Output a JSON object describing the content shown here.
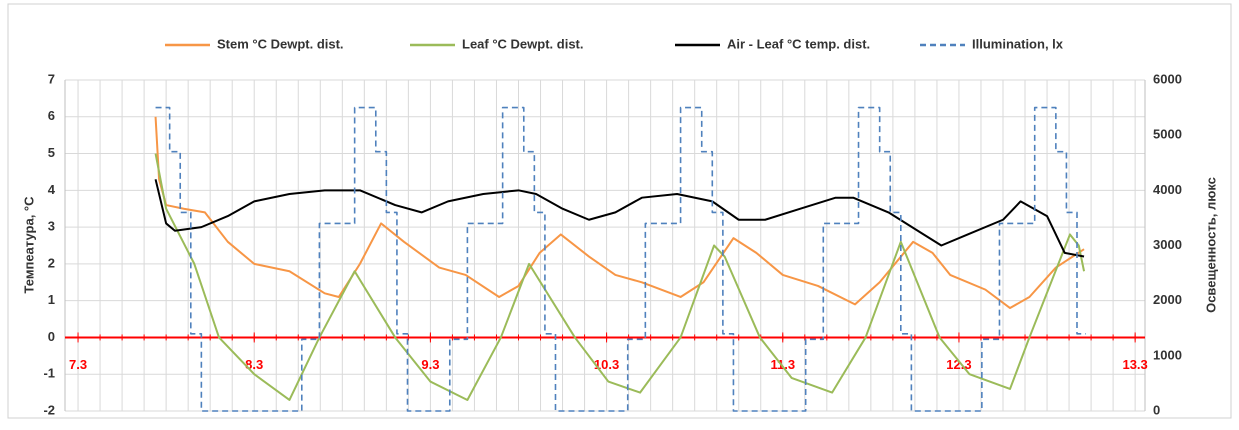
{
  "chart_data": {
    "type": "line",
    "ylabel": "Темпеатура, °C",
    "y2label": "Освещенность, люкс",
    "xlim": [
      -0.074,
      6.056
    ],
    "xticks": [
      {
        "value": 0,
        "label": "7.3"
      },
      {
        "value": 1,
        "label": "8.3"
      },
      {
        "value": 2,
        "label": "9.3"
      },
      {
        "value": 3,
        "label": "10.3"
      },
      {
        "value": 4,
        "label": "11.3"
      },
      {
        "value": 5,
        "label": "12.3"
      },
      {
        "value": 6,
        "label": "13.3"
      }
    ],
    "xminor_ticks": [
      0,
      0.125,
      0.25,
      0.375,
      0.5,
      0.625,
      0.75,
      0.875,
      1,
      1.125,
      1.25,
      1.375,
      1.5,
      1.625,
      1.75,
      1.875,
      2,
      2.125,
      2.25,
      2.375,
      2.5,
      2.625,
      2.75,
      2.875,
      3,
      3.125,
      3.25,
      3.375,
      3.5,
      3.625,
      3.75,
      3.875,
      4,
      4.125,
      4.25,
      4.375,
      4.5,
      4.625,
      4.75,
      4.875,
      5,
      5.125,
      5.25,
      5.375,
      5.5,
      5.625,
      5.75,
      5.875,
      6
    ],
    "ylim": [
      -2,
      7
    ],
    "yticks": [
      -2,
      -1,
      0,
      1,
      2,
      3,
      4,
      5,
      6,
      7
    ],
    "y2lim": [
      0,
      6000
    ],
    "y2ticks": [
      0,
      1000,
      2000,
      3000,
      4000,
      5000,
      6000
    ],
    "grid": true,
    "legend": "top",
    "xaxis_color": "#ff0000",
    "series": [
      {
        "name": "Stem °C Dewpt. dist.",
        "color": "#f79646",
        "linestyle": "solid",
        "x": [
          0.44,
          0.46,
          0.5,
          0.6,
          0.72,
          0.85,
          1.0,
          1.2,
          1.4,
          1.48,
          1.6,
          1.72,
          1.85,
          2.05,
          2.2,
          2.39,
          2.5,
          2.62,
          2.74,
          2.9,
          3.05,
          3.2,
          3.42,
          3.55,
          3.72,
          3.85,
          4.0,
          4.2,
          4.41,
          4.55,
          4.74,
          4.85,
          4.95,
          5.15,
          5.29,
          5.4,
          5.55,
          5.71
        ],
        "values": [
          6.0,
          4.3,
          3.6,
          3.5,
          3.4,
          2.6,
          2.0,
          1.8,
          1.2,
          1.1,
          2.0,
          3.1,
          2.6,
          1.9,
          1.7,
          1.1,
          1.4,
          2.3,
          2.8,
          2.2,
          1.7,
          1.5,
          1.1,
          1.5,
          2.7,
          2.3,
          1.7,
          1.4,
          0.9,
          1.5,
          2.6,
          2.3,
          1.7,
          1.3,
          0.8,
          1.1,
          1.9,
          2.4
        ]
      },
      {
        "name": "Leaf °C Dewpt. dist.",
        "color": "#9bbb59",
        "linestyle": "solid",
        "x": [
          0.44,
          0.5,
          0.66,
          0.8,
          1.0,
          1.2,
          1.37,
          1.57,
          1.8,
          2.0,
          2.21,
          2.4,
          2.56,
          2.82,
          3.01,
          3.19,
          3.42,
          3.61,
          3.67,
          3.87,
          4.05,
          4.28,
          4.47,
          4.67,
          4.89,
          5.06,
          5.29,
          5.4,
          5.63,
          5.68,
          5.71
        ],
        "values": [
          5.0,
          3.5,
          2.0,
          0,
          -1.0,
          -1.7,
          0,
          1.8,
          0,
          -1.2,
          -1.7,
          0,
          2.0,
          0,
          -1.2,
          -1.5,
          0,
          2.5,
          2.2,
          0,
          -1.1,
          -1.5,
          0,
          2.6,
          0,
          -1.0,
          -1.4,
          0,
          2.8,
          2.5,
          1.8
        ]
      },
      {
        "name": "Air - Leaf °C temp. dist.",
        "color": "#000000",
        "linestyle": "solid",
        "x": [
          0.44,
          0.5,
          0.55,
          0.7,
          0.85,
          1.0,
          1.2,
          1.4,
          1.6,
          1.8,
          1.95,
          2.1,
          2.3,
          2.5,
          2.6,
          2.75,
          2.9,
          3.05,
          3.2,
          3.4,
          3.6,
          3.75,
          3.9,
          4.1,
          4.3,
          4.4,
          4.6,
          4.8,
          4.9,
          5.05,
          5.25,
          5.35,
          5.5,
          5.6,
          5.71
        ],
        "values": [
          4.3,
          3.1,
          2.9,
          3.0,
          3.3,
          3.7,
          3.9,
          4.0,
          4.0,
          3.6,
          3.4,
          3.7,
          3.9,
          4.0,
          3.9,
          3.5,
          3.2,
          3.4,
          3.8,
          3.9,
          3.7,
          3.2,
          3.2,
          3.5,
          3.8,
          3.8,
          3.4,
          2.8,
          2.5,
          2.8,
          3.2,
          3.7,
          3.3,
          2.3,
          2.2
        ]
      },
      {
        "name": "Illumination, lx",
        "color": "#4f81bd",
        "linestyle": "dashed",
        "step": "post",
        "axis": "y2",
        "x": [
          0.44,
          0.52,
          0.58,
          0.64,
          0.7,
          1.27,
          1.37,
          1.57,
          1.69,
          1.75,
          1.81,
          1.87,
          2.11,
          2.21,
          2.41,
          2.53,
          2.59,
          2.65,
          2.71,
          3.12,
          3.22,
          3.42,
          3.54,
          3.6,
          3.66,
          3.72,
          4.13,
          4.23,
          4.43,
          4.55,
          4.61,
          4.67,
          4.73,
          5.13,
          5.23,
          5.43,
          5.55,
          5.61,
          5.67,
          5.72
        ],
        "values": [
          5500,
          4700,
          3600,
          1400,
          0,
          1300,
          3400,
          5500,
          4700,
          3600,
          1400,
          0,
          1300,
          3400,
          5500,
          4700,
          3600,
          1400,
          0,
          1300,
          3400,
          5500,
          4700,
          3600,
          1400,
          0,
          1300,
          3400,
          5500,
          4700,
          3600,
          1400,
          0,
          1300,
          3400,
          5500,
          4700,
          3600,
          1400,
          1400
        ]
      }
    ]
  }
}
